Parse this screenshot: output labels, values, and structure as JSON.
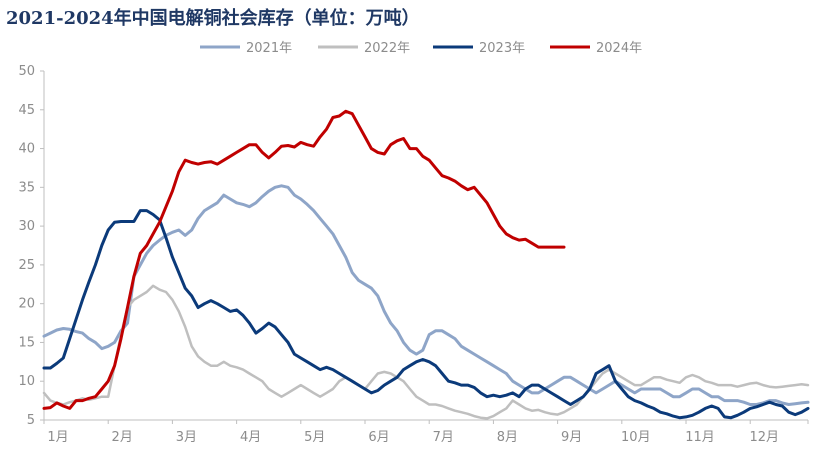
{
  "chart_data": {
    "type": "line",
    "title": "2021-2024年中国电解铜社会库存（单位：万吨）",
    "xlabel": "",
    "ylabel": "",
    "ylim": [
      5,
      50
    ],
    "yticks": [
      "5",
      "10",
      "15",
      "20",
      "25",
      "30",
      "35",
      "40",
      "45",
      "50"
    ],
    "x_ticks": [
      "1月",
      "2月",
      "3月",
      "4月",
      "5月",
      "6月",
      "7月",
      "8月",
      "9月",
      "10月",
      "11月",
      "12月"
    ],
    "legend_position": "top",
    "grid": false,
    "series": [
      {
        "name": "2021年",
        "color": "#8ea5c8",
        "x": [
          0.0,
          0.1,
          0.2,
          0.3,
          0.4,
          0.5,
          0.6,
          0.7,
          0.8,
          0.9,
          1.0,
          1.1,
          1.2,
          1.3,
          1.4,
          1.5,
          1.6,
          1.7,
          1.8,
          1.9,
          2.0,
          2.1,
          2.2,
          2.3,
          2.4,
          2.5,
          2.6,
          2.7,
          2.8,
          2.9,
          3.0,
          3.1,
          3.2,
          3.3,
          3.4,
          3.5,
          3.6,
          3.7,
          3.8,
          3.9,
          4.0,
          4.1,
          4.2,
          4.3,
          4.4,
          4.5,
          4.6,
          4.7,
          4.8,
          4.9,
          5.0,
          5.1,
          5.2,
          5.3,
          5.4,
          5.5,
          5.6,
          5.7,
          5.8,
          5.9,
          6.0,
          6.1,
          6.2,
          6.3,
          6.4,
          6.5,
          6.6,
          6.7,
          6.8,
          6.9,
          7.0,
          7.1,
          7.2,
          7.3,
          7.4,
          7.5,
          7.6,
          7.7,
          7.8,
          7.9,
          8.0,
          8.1,
          8.2,
          8.3,
          8.4,
          8.5,
          8.6,
          8.7,
          8.8,
          8.9,
          9.0,
          9.1,
          9.2,
          9.3,
          9.4,
          9.5,
          9.6,
          9.7,
          9.8,
          9.9,
          10.0,
          10.1,
          10.2,
          10.3,
          10.4,
          10.5,
          10.6,
          10.7,
          10.8,
          10.9,
          11.0,
          11.1,
          11.2,
          11.3,
          11.4,
          11.5,
          11.6,
          11.7,
          11.8,
          11.9
        ],
        "values": [
          15.8,
          16.2,
          16.6,
          16.8,
          16.7,
          16.4,
          16.2,
          15.5,
          15.0,
          14.2,
          14.5,
          15.0,
          16.5,
          17.5,
          23.5,
          25.0,
          26.5,
          27.5,
          28.2,
          28.8,
          29.2,
          29.5,
          28.8,
          29.5,
          31.0,
          32.0,
          32.5,
          33.0,
          34.0,
          33.5,
          33.0,
          32.8,
          32.5,
          33.0,
          33.8,
          34.5,
          35.0,
          35.2,
          35.0,
          34.0,
          33.5,
          32.8,
          32.0,
          31.0,
          30.0,
          29.0,
          27.5,
          26.0,
          24.0,
          23.0,
          22.5,
          22.0,
          21.0,
          19.0,
          17.5,
          16.5,
          15.0,
          14.0,
          13.5,
          14.0,
          16.0,
          16.5,
          16.5,
          16.0,
          15.5,
          14.5,
          14.0,
          13.5,
          13.0,
          12.5,
          12.0,
          11.5,
          11.0,
          10.0,
          9.5,
          9.0,
          8.5,
          8.5,
          9.0,
          9.5,
          10.0,
          10.5,
          10.5,
          10.0,
          9.5,
          9.0,
          8.5,
          9.0,
          9.5,
          10.0,
          9.5,
          9.0,
          8.5,
          9.0,
          9.0,
          9.0,
          9.0,
          8.5,
          8.0,
          8.0,
          8.5,
          9.0,
          9.0,
          8.5,
          8.0,
          8.0,
          7.5,
          7.5,
          7.5,
          7.3,
          7.0,
          7.0,
          7.2,
          7.5,
          7.5,
          7.2,
          7.0,
          7.1,
          7.2,
          7.3
        ]
      },
      {
        "name": "2022年",
        "color": "#bfbfbf",
        "x": [
          0.0,
          0.1,
          0.2,
          0.3,
          0.4,
          0.5,
          0.6,
          0.7,
          0.8,
          0.9,
          1.0,
          1.1,
          1.2,
          1.3,
          1.4,
          1.5,
          1.6,
          1.7,
          1.8,
          1.9,
          2.0,
          2.1,
          2.2,
          2.3,
          2.4,
          2.5,
          2.6,
          2.7,
          2.8,
          2.9,
          3.0,
          3.1,
          3.2,
          3.3,
          3.4,
          3.5,
          3.6,
          3.7,
          3.8,
          3.9,
          4.0,
          4.1,
          4.2,
          4.3,
          4.4,
          4.5,
          4.6,
          4.7,
          4.8,
          4.9,
          5.0,
          5.1,
          5.2,
          5.3,
          5.4,
          5.5,
          5.6,
          5.7,
          5.8,
          5.9,
          6.0,
          6.1,
          6.2,
          6.3,
          6.4,
          6.5,
          6.6,
          6.7,
          6.8,
          6.9,
          7.0,
          7.1,
          7.2,
          7.3,
          7.4,
          7.5,
          7.6,
          7.7,
          7.8,
          7.9,
          8.0,
          8.1,
          8.2,
          8.3,
          8.4,
          8.5,
          8.6,
          8.7,
          8.8,
          8.9,
          9.0,
          9.1,
          9.2,
          9.3,
          9.4,
          9.5,
          9.6,
          9.7,
          9.8,
          9.9,
          10.0,
          10.1,
          10.2,
          10.3,
          10.4,
          10.5,
          10.6,
          10.7,
          10.8,
          10.9,
          11.0,
          11.1,
          11.2,
          11.3,
          11.4,
          11.5,
          11.6,
          11.7,
          11.8,
          11.9
        ],
        "values": [
          8.5,
          7.5,
          7.2,
          7.0,
          7.3,
          7.5,
          7.8,
          7.6,
          7.8,
          8.0,
          8.0,
          12.0,
          16.0,
          19.5,
          20.5,
          21.0,
          21.5,
          22.3,
          21.8,
          21.5,
          20.5,
          19.0,
          17.0,
          14.5,
          13.2,
          12.5,
          12.0,
          12.0,
          12.5,
          12.0,
          11.8,
          11.5,
          11.0,
          10.5,
          10.0,
          9.0,
          8.5,
          8.0,
          8.5,
          9.0,
          9.5,
          9.0,
          8.5,
          8.0,
          8.5,
          9.0,
          10.0,
          10.5,
          10.0,
          9.5,
          9.0,
          10.0,
          11.0,
          11.2,
          11.0,
          10.5,
          10.0,
          9.0,
          8.0,
          7.5,
          7.0,
          7.0,
          6.8,
          6.5,
          6.2,
          6.0,
          5.8,
          5.5,
          5.3,
          5.2,
          5.5,
          6.0,
          6.5,
          7.5,
          7.0,
          6.5,
          6.2,
          6.3,
          6.0,
          5.8,
          5.7,
          6.0,
          6.5,
          7.0,
          8.0,
          9.0,
          10.0,
          11.0,
          11.5,
          11.0,
          10.5,
          10.0,
          9.5,
          9.5,
          10.0,
          10.5,
          10.5,
          10.2,
          10.0,
          9.8,
          10.5,
          10.8,
          10.5,
          10.0,
          9.8,
          9.5,
          9.5,
          9.5,
          9.3,
          9.5,
          9.7,
          9.8,
          9.5,
          9.3,
          9.2,
          9.3,
          9.4,
          9.5,
          9.6,
          9.5
        ]
      },
      {
        "name": "2023年",
        "color": "#0b3a7a",
        "x": [
          0.0,
          0.1,
          0.2,
          0.3,
          0.4,
          0.5,
          0.6,
          0.7,
          0.8,
          0.9,
          1.0,
          1.1,
          1.2,
          1.3,
          1.4,
          1.5,
          1.6,
          1.7,
          1.8,
          1.9,
          2.0,
          2.1,
          2.2,
          2.3,
          2.4,
          2.5,
          2.6,
          2.7,
          2.8,
          2.9,
          3.0,
          3.1,
          3.2,
          3.3,
          3.4,
          3.5,
          3.6,
          3.7,
          3.8,
          3.9,
          4.0,
          4.1,
          4.2,
          4.3,
          4.4,
          4.5,
          4.6,
          4.7,
          4.8,
          4.9,
          5.0,
          5.1,
          5.2,
          5.3,
          5.4,
          5.5,
          5.6,
          5.7,
          5.8,
          5.9,
          6.0,
          6.1,
          6.2,
          6.3,
          6.4,
          6.5,
          6.6,
          6.7,
          6.8,
          6.9,
          7.0,
          7.1,
          7.2,
          7.3,
          7.4,
          7.5,
          7.6,
          7.7,
          7.8,
          7.9,
          8.0,
          8.1,
          8.2,
          8.3,
          8.4,
          8.5,
          8.6,
          8.7,
          8.8,
          8.9,
          9.0,
          9.1,
          9.2,
          9.3,
          9.4,
          9.5,
          9.6,
          9.7,
          9.8,
          9.9,
          10.0,
          10.1,
          10.2,
          10.3,
          10.4,
          10.5,
          10.6,
          10.7,
          10.8,
          10.9,
          11.0,
          11.1,
          11.2,
          11.3,
          11.4,
          11.5,
          11.6,
          11.7,
          11.8,
          11.9
        ],
        "values": [
          11.7,
          11.7,
          12.3,
          13.0,
          15.5,
          18.0,
          20.5,
          22.8,
          25.0,
          27.5,
          29.5,
          30.5,
          30.6,
          30.6,
          30.6,
          32.0,
          32.0,
          31.5,
          30.8,
          28.5,
          26.0,
          24.0,
          22.0,
          21.0,
          19.5,
          20.0,
          20.4,
          20.0,
          19.5,
          19.0,
          19.2,
          18.5,
          17.5,
          16.2,
          16.8,
          17.5,
          17.0,
          16.0,
          15.0,
          13.5,
          13.0,
          12.5,
          12.0,
          11.5,
          11.8,
          11.5,
          11.0,
          10.5,
          10.0,
          9.5,
          9.0,
          8.5,
          8.8,
          9.5,
          10.0,
          10.5,
          11.5,
          12.0,
          12.5,
          12.8,
          12.5,
          12.0,
          11.0,
          10.0,
          9.8,
          9.5,
          9.5,
          9.2,
          8.5,
          8.0,
          8.2,
          8.0,
          8.2,
          8.5,
          8.0,
          9.0,
          9.5,
          9.5,
          9.0,
          8.5,
          8.0,
          7.5,
          7.0,
          7.5,
          8.0,
          9.0,
          11.0,
          11.5,
          12.0,
          10.0,
          9.0,
          8.0,
          7.5,
          7.2,
          6.8,
          6.5,
          6.0,
          5.8,
          5.5,
          5.3,
          5.4,
          5.6,
          6.0,
          6.5,
          6.8,
          6.5,
          5.4,
          5.3,
          5.6,
          6.0,
          6.5,
          6.7,
          7.0,
          7.3,
          7.0,
          6.8,
          6.0,
          5.7,
          6.0,
          6.5
        ]
      },
      {
        "name": "2024年",
        "color": "#c00000",
        "x": [
          0.0,
          0.1,
          0.2,
          0.3,
          0.4,
          0.5,
          0.6,
          0.7,
          0.8,
          0.9,
          1.0,
          1.1,
          1.2,
          1.3,
          1.4,
          1.5,
          1.6,
          1.7,
          1.8,
          1.9,
          2.0,
          2.1,
          2.2,
          2.3,
          2.4,
          2.5,
          2.6,
          2.7,
          2.8,
          2.9,
          3.0,
          3.1,
          3.2,
          3.3,
          3.4,
          3.5,
          3.6,
          3.7,
          3.8,
          3.9,
          4.0,
          4.1,
          4.2,
          4.3,
          4.4,
          4.5,
          4.6,
          4.7,
          4.8,
          4.9,
          5.0,
          5.1,
          5.2,
          5.3,
          5.4,
          5.5,
          5.6,
          5.7,
          5.8,
          5.9,
          6.0,
          6.1,
          6.2,
          6.3,
          6.4,
          6.5,
          6.6,
          6.7,
          6.8,
          6.9,
          7.0,
          7.1,
          7.2,
          7.3,
          7.4,
          7.5,
          7.6,
          7.7,
          7.8,
          7.9,
          8.0,
          8.1
        ],
        "values": [
          6.5,
          6.6,
          7.2,
          6.8,
          6.5,
          7.5,
          7.5,
          7.8,
          8.0,
          9.0,
          10.0,
          12.0,
          15.5,
          19.5,
          23.5,
          26.5,
          27.5,
          29.0,
          30.5,
          32.5,
          34.5,
          37.0,
          38.5,
          38.2,
          38.0,
          38.2,
          38.3,
          38.0,
          38.5,
          39.0,
          39.5,
          40.0,
          40.5,
          40.5,
          39.5,
          38.8,
          39.5,
          40.3,
          40.4,
          40.2,
          40.8,
          40.5,
          40.3,
          41.5,
          42.5,
          44.0,
          44.2,
          44.8,
          44.5,
          43.0,
          41.5,
          40.0,
          39.5,
          39.3,
          40.5,
          41.0,
          41.3,
          40.0,
          40.0,
          39.0,
          38.5,
          37.5,
          36.5,
          36.2,
          35.8,
          35.2,
          34.7,
          35.0,
          34.0,
          33.0,
          31.5,
          30.0,
          29.0,
          28.5,
          28.2,
          28.3,
          27.8,
          27.3,
          27.3,
          27.3,
          27.3,
          27.3
        ]
      }
    ]
  }
}
